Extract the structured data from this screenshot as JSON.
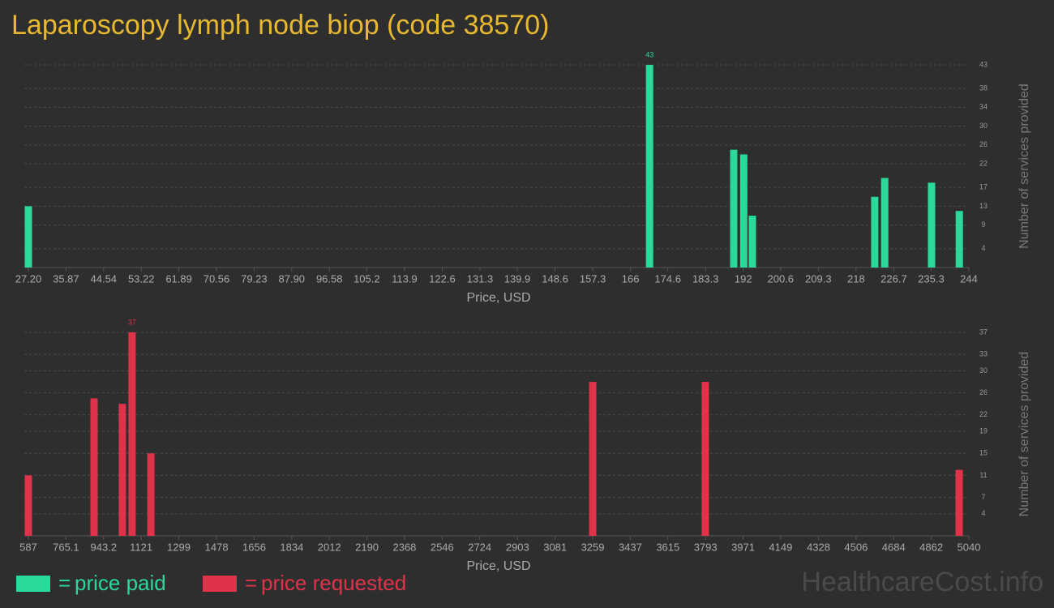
{
  "title": "Laparoscopy lymph node biop (code 38570)",
  "watermark": "HealthcareCost.info",
  "chart_data": [
    {
      "type": "bar",
      "x": [
        27.2,
        170.4,
        189.8,
        192.1,
        194.1,
        222.3,
        224.6,
        235.4,
        241.8
      ],
      "series": [
        {
          "name": "price paid",
          "color": "#2bd99a",
          "values": [
            13,
            43,
            25,
            24,
            11,
            15,
            19,
            18,
            12
          ]
        }
      ],
      "xlim": [
        27.2,
        244
      ],
      "xticks": [
        {
          "value": 27.2,
          "label": "27.20"
        },
        35.87,
        44.54,
        53.22,
        61.89,
        70.56,
        79.23,
        {
          "value": 87.9,
          "label": "87.90"
        },
        96.58,
        105.2,
        113.9,
        122.6,
        131.3,
        139.9,
        148.6,
        157.3,
        166,
        174.6,
        183.3,
        192,
        200.6,
        209.3,
        218,
        226.7,
        235.3,
        244
      ],
      "ylim": [
        0,
        43
      ],
      "yticks": [
        4,
        9,
        13,
        17,
        22,
        26,
        30,
        34,
        38,
        43
      ],
      "xlabel": "Price, USD",
      "ylabel": "Number of services provided",
      "grid": true
    },
    {
      "type": "bar",
      "x": [
        587,
        898,
        1032,
        1078,
        1167,
        3259,
        3792,
        4994
      ],
      "series": [
        {
          "name": "price requested",
          "color": "#e0334a",
          "values": [
            11,
            25,
            24,
            37,
            15,
            28,
            28,
            12
          ]
        }
      ],
      "xlim": [
        587,
        5040
      ],
      "xticks": [
        587,
        765.1,
        943.2,
        1121,
        1299,
        1478,
        1656,
        1834,
        2012,
        2190,
        2368,
        2546,
        2724,
        2903,
        3081,
        3259,
        3437,
        3615,
        3793,
        3971,
        4149,
        4328,
        4506,
        4684,
        4862,
        5040
      ],
      "ylim": [
        0,
        37
      ],
      "yticks": [
        4,
        7,
        11,
        15,
        19,
        22,
        26,
        30,
        33,
        37
      ],
      "xlabel": "Price, USD",
      "ylabel": "Number of services provided",
      "grid": true
    }
  ]
}
